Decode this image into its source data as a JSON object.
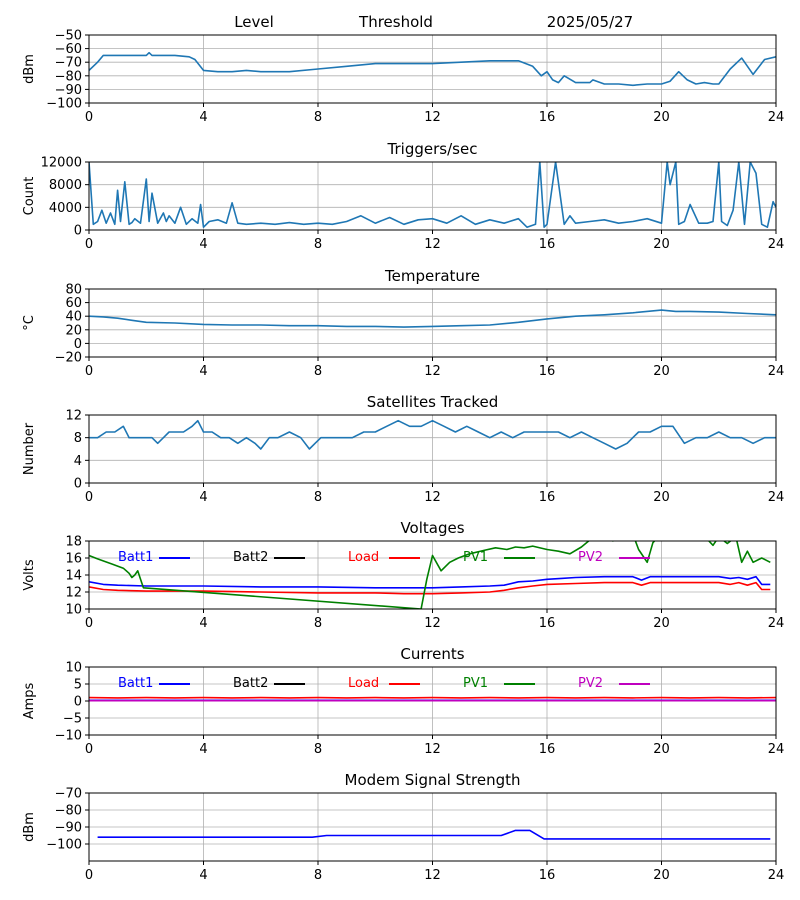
{
  "header": {
    "left": "Level",
    "middle": "Threshold",
    "date": "2025/05/27"
  },
  "colors": {
    "default": "#1f77b4",
    "batt1": "#0000ff",
    "batt2": "#000000",
    "load": "#ff0000",
    "pv1": "#008000",
    "pv2": "#bf00bf",
    "grid": "#b0b0b0"
  },
  "chart_data": [
    {
      "id": "level",
      "type": "line",
      "title": "",
      "ylabel": "dBm",
      "xlim": [
        0,
        24
      ],
      "ylim": [
        -100,
        -50
      ],
      "xticks": [
        0,
        4,
        8,
        12,
        16,
        20,
        24
      ],
      "yticks": [
        -100,
        -90,
        -80,
        -70,
        -60,
        -50
      ],
      "ytick_labels": [
        "−100",
        "−90",
        "−80",
        "−70",
        "−60",
        "−50"
      ],
      "grid": true,
      "series": [
        {
          "color": "#1f77b4",
          "x": [
            0,
            0.3,
            0.5,
            1,
            2,
            2.1,
            2.2,
            3,
            3.5,
            3.7,
            4,
            4.5,
            5,
            5.5,
            6,
            7,
            8,
            9,
            10,
            11,
            12,
            13,
            14,
            15,
            15.5,
            15.8,
            16,
            16.2,
            16.4,
            16.6,
            17,
            17.5,
            17.6,
            18,
            18.5,
            19,
            19.5,
            20,
            20.3,
            20.6,
            20.9,
            21.2,
            21.5,
            21.8,
            22,
            22.4,
            22.8,
            23.2,
            23.6,
            24
          ],
          "y": [
            -76,
            -70,
            -65,
            -65,
            -65,
            -63,
            -65,
            -65,
            -66,
            -68,
            -76,
            -77,
            -77,
            -76,
            -77,
            -77,
            -75,
            -73,
            -71,
            -71,
            -71,
            -70,
            -69,
            -69,
            -73,
            -80,
            -77,
            -83,
            -85,
            -80,
            -85,
            -85,
            -83,
            -86,
            -86,
            -87,
            -86,
            -86,
            -84,
            -77,
            -83,
            -86,
            -85,
            -86,
            -86,
            -75,
            -67,
            -79,
            -68,
            -66
          ]
        }
      ]
    },
    {
      "id": "triggers",
      "type": "line",
      "title": "Triggers/sec",
      "ylabel": "Count",
      "xlim": [
        0,
        24
      ],
      "ylim": [
        0,
        12000
      ],
      "xticks": [
        0,
        4,
        8,
        12,
        16,
        20,
        24
      ],
      "yticks": [
        0,
        4000,
        8000,
        12000
      ],
      "ytick_labels": [
        "0",
        "4000",
        "8000",
        "12000"
      ],
      "grid": true,
      "series": [
        {
          "color": "#1f77b4",
          "x": [
            0,
            0.15,
            0.3,
            0.45,
            0.6,
            0.75,
            0.9,
            1.0,
            1.1,
            1.25,
            1.4,
            1.5,
            1.6,
            1.8,
            2.0,
            2.1,
            2.2,
            2.4,
            2.6,
            2.7,
            2.8,
            3.0,
            3.2,
            3.4,
            3.6,
            3.8,
            3.9,
            4.0,
            4.2,
            4.5,
            4.8,
            5.0,
            5.2,
            5.5,
            6.0,
            6.5,
            7.0,
            7.5,
            8.0,
            8.5,
            9.0,
            9.5,
            10.0,
            10.5,
            11.0,
            11.5,
            12.0,
            12.5,
            13.0,
            13.5,
            14.0,
            14.5,
            15.0,
            15.3,
            15.6,
            15.75,
            15.9,
            16.0,
            16.3,
            16.6,
            16.8,
            17.0,
            17.5,
            18.0,
            18.5,
            19.0,
            19.5,
            20.0,
            20.2,
            20.3,
            20.5,
            20.6,
            20.8,
            21.0,
            21.3,
            21.6,
            21.8,
            22.0,
            22.1,
            22.3,
            22.5,
            22.7,
            22.9,
            23.1,
            23.3,
            23.5,
            23.7,
            23.9,
            24
          ],
          "y": [
            12000,
            1000,
            1500,
            3500,
            1200,
            3000,
            1000,
            7000,
            1500,
            8500,
            1000,
            1300,
            2000,
            1200,
            9000,
            1500,
            6500,
            1200,
            3000,
            1500,
            2500,
            1200,
            4000,
            1000,
            2000,
            1200,
            4500,
            500,
            1500,
            1800,
            1200,
            4800,
            1200,
            1000,
            1200,
            1000,
            1300,
            1000,
            1200,
            1000,
            1500,
            2500,
            1200,
            2200,
            1000,
            1800,
            2000,
            1200,
            2500,
            1000,
            1800,
            1200,
            2000,
            500,
            1000,
            12000,
            500,
            1000,
            12000,
            1000,
            2500,
            1200,
            1500,
            1800,
            1200,
            1500,
            2000,
            1200,
            12000,
            8000,
            12000,
            1000,
            1500,
            4500,
            1200,
            1200,
            1500,
            12000,
            1500,
            800,
            3500,
            12000,
            1000,
            12000,
            10000,
            1000,
            500,
            5000,
            4000
          ]
        }
      ]
    },
    {
      "id": "temperature",
      "type": "line",
      "title": "Temperature",
      "ylabel": "°C",
      "xlim": [
        0,
        24
      ],
      "ylim": [
        -20,
        80
      ],
      "xticks": [
        0,
        4,
        8,
        12,
        16,
        20,
        24
      ],
      "yticks": [
        -20,
        0,
        20,
        40,
        60,
        80
      ],
      "ytick_labels": [
        "−20",
        "0",
        "20",
        "40",
        "60",
        "80"
      ],
      "grid": true,
      "series": [
        {
          "color": "#1f77b4",
          "x": [
            0,
            0.5,
            1,
            1.5,
            2,
            3,
            4,
            5,
            6,
            7,
            8,
            9,
            10,
            11,
            12,
            13,
            14,
            15,
            16,
            17,
            18,
            19,
            20,
            20.5,
            21,
            22,
            23,
            24
          ],
          "y": [
            40,
            39,
            37,
            34,
            31,
            30,
            28,
            27,
            27,
            26,
            26,
            25,
            25,
            24,
            25,
            26,
            27,
            31,
            36,
            40,
            42,
            45,
            49,
            47,
            47,
            46,
            44,
            42
          ]
        }
      ]
    },
    {
      "id": "satellites",
      "type": "line",
      "title": "Satellites Tracked",
      "ylabel": "Number",
      "xlim": [
        0,
        24
      ],
      "ylim": [
        0,
        12
      ],
      "xticks": [
        0,
        4,
        8,
        12,
        16,
        20,
        24
      ],
      "yticks": [
        0,
        4,
        8,
        12
      ],
      "ytick_labels": [
        "0",
        "4",
        "8",
        "12"
      ],
      "grid": true,
      "series": [
        {
          "color": "#1f77b4",
          "x": [
            0,
            0.3,
            0.6,
            0.9,
            1.2,
            1.4,
            1.6,
            1.8,
            2.0,
            2.2,
            2.4,
            2.6,
            2.8,
            3.0,
            3.3,
            3.6,
            3.8,
            4.0,
            4.3,
            4.6,
            4.9,
            5.2,
            5.5,
            5.8,
            6.0,
            6.3,
            6.6,
            7.0,
            7.4,
            7.7,
            7.9,
            8.1,
            8.4,
            8.8,
            9.2,
            9.6,
            10.0,
            10.4,
            10.8,
            11.2,
            11.6,
            12.0,
            12.4,
            12.8,
            13.2,
            13.6,
            14.0,
            14.4,
            14.8,
            15.2,
            15.6,
            16.0,
            16.4,
            16.8,
            17.2,
            17.6,
            18.0,
            18.4,
            18.8,
            19.2,
            19.6,
            20.0,
            20.4,
            20.8,
            21.2,
            21.6,
            22.0,
            22.4,
            22.8,
            23.2,
            23.6,
            24
          ],
          "y": [
            8,
            8,
            9,
            9,
            10,
            8,
            8,
            8,
            8,
            8,
            7,
            8,
            9,
            9,
            9,
            10,
            11,
            9,
            9,
            8,
            8,
            7,
            8,
            7,
            6,
            8,
            8,
            9,
            8,
            6,
            7,
            8,
            8,
            8,
            8,
            9,
            9,
            10,
            11,
            10,
            10,
            11,
            10,
            9,
            10,
            9,
            8,
            9,
            8,
            9,
            9,
            9,
            9,
            8,
            9,
            8,
            7,
            6,
            7,
            9,
            9,
            10,
            10,
            7,
            8,
            8,
            9,
            8,
            8,
            7,
            8,
            8
          ]
        }
      ]
    },
    {
      "id": "voltages",
      "type": "line",
      "title": "Voltages",
      "ylabel": "Volts",
      "xlim": [
        0,
        24
      ],
      "ylim": [
        10,
        18
      ],
      "xticks": [
        0,
        4,
        8,
        12,
        16,
        20,
        24
      ],
      "yticks": [
        10,
        12,
        14,
        16,
        18
      ],
      "ytick_labels": [
        "10",
        "12",
        "14",
        "16",
        "18"
      ],
      "grid": true,
      "legend": "top-left-inside",
      "series": [
        {
          "name": "Batt1",
          "color": "#0000ff",
          "x": [
            0,
            0.5,
            1,
            2,
            3,
            4,
            6,
            8,
            10,
            12,
            13,
            14,
            14.5,
            15,
            15.5,
            16,
            16.5,
            17,
            18,
            19,
            19.3,
            19.6,
            20,
            21,
            22,
            22.4,
            22.7,
            23,
            23.3,
            23.5,
            23.8
          ],
          "y": [
            13.2,
            12.9,
            12.8,
            12.7,
            12.7,
            12.7,
            12.6,
            12.6,
            12.5,
            12.5,
            12.6,
            12.7,
            12.8,
            13.2,
            13.3,
            13.5,
            13.6,
            13.7,
            13.8,
            13.8,
            13.4,
            13.8,
            13.8,
            13.8,
            13.8,
            13.6,
            13.7,
            13.5,
            13.8,
            12.9,
            12.9
          ]
        },
        {
          "name": "Batt2",
          "color": "#000000",
          "x": [],
          "y": []
        },
        {
          "name": "Load",
          "color": "#ff0000",
          "x": [
            0,
            0.5,
            1,
            2,
            3,
            4,
            6,
            8,
            10,
            11,
            12,
            13,
            14,
            14.5,
            15,
            15.5,
            16,
            17,
            18,
            19,
            19.3,
            19.6,
            20,
            21,
            22,
            22.4,
            22.7,
            23,
            23.3,
            23.5,
            23.8
          ],
          "y": [
            12.6,
            12.3,
            12.2,
            12.1,
            12.1,
            12.1,
            12.0,
            11.9,
            11.9,
            11.8,
            11.8,
            11.9,
            12.0,
            12.2,
            12.5,
            12.7,
            12.9,
            13.0,
            13.1,
            13.1,
            12.8,
            13.1,
            13.1,
            13.1,
            13.1,
            12.9,
            13.1,
            12.8,
            13.1,
            12.3,
            12.3
          ]
        },
        {
          "name": "PV1",
          "color": "#008000",
          "x": [
            0,
            0.3,
            0.8,
            1.2,
            1.4,
            1.5,
            1.6,
            1.7,
            1.9,
            11.6,
            11.8,
            12.0,
            12.3,
            12.6,
            12.9,
            13.3,
            13.8,
            14.2,
            14.6,
            14.9,
            15.2,
            15.5,
            16.0,
            16.4,
            16.8,
            17.2,
            17.6,
            18.0,
            18.3,
            18.6,
            19.0,
            19.2,
            19.5,
            19.7,
            19.9,
            20.2,
            21.0,
            21.6,
            21.8,
            22.0,
            22.3,
            22.6,
            22.8,
            23.0,
            23.2,
            23.5,
            23.8
          ],
          "y": [
            16.3,
            15.9,
            15.3,
            14.8,
            14.2,
            13.7,
            14.0,
            14.5,
            12.5,
            10.0,
            13.5,
            16.3,
            14.5,
            15.5,
            16.0,
            16.5,
            16.9,
            17.2,
            17.0,
            17.3,
            17.2,
            17.4,
            17.0,
            16.8,
            16.5,
            17.3,
            18.4,
            18.6,
            18.0,
            18.5,
            18.8,
            17.0,
            15.5,
            17.8,
            18.5,
            19.0,
            19.0,
            18.2,
            17.5,
            18.5,
            17.7,
            18.5,
            15.5,
            16.8,
            15.5,
            16.0,
            15.5
          ]
        },
        {
          "name": "PV2",
          "color": "#bf00bf",
          "x": [],
          "y": []
        }
      ]
    },
    {
      "id": "currents",
      "type": "line",
      "title": "Currents",
      "ylabel": "Amps",
      "xlim": [
        0,
        24
      ],
      "ylim": [
        -10,
        10
      ],
      "xticks": [
        0,
        4,
        8,
        12,
        16,
        20,
        24
      ],
      "yticks": [
        -10,
        -5,
        0,
        5,
        10
      ],
      "ytick_labels": [
        "−10",
        "−5",
        "0",
        "5",
        "10"
      ],
      "grid": true,
      "legend": "top-left-inside",
      "series": [
        {
          "name": "Batt1",
          "color": "#0000ff",
          "x": [
            0,
            4,
            8,
            12,
            16,
            20,
            24
          ],
          "y": [
            0.2,
            0.2,
            0.2,
            0.2,
            0.2,
            0.2,
            0.2
          ]
        },
        {
          "name": "Batt2",
          "color": "#000000",
          "x": [],
          "y": []
        },
        {
          "name": "Load",
          "color": "#ff0000",
          "x": [
            0,
            1,
            2,
            3,
            4,
            5,
            6,
            7,
            8,
            9,
            10,
            11,
            12,
            13,
            14,
            15,
            16,
            17,
            18,
            19,
            20,
            21,
            22,
            23,
            24
          ],
          "y": [
            1.0,
            0.9,
            1.0,
            0.9,
            1.0,
            0.9,
            1.0,
            0.9,
            1.0,
            0.9,
            1.0,
            0.9,
            1.0,
            0.9,
            1.0,
            0.9,
            1.0,
            0.9,
            1.0,
            0.9,
            1.0,
            0.9,
            1.0,
            0.9,
            1.0
          ]
        },
        {
          "name": "PV1",
          "color": "#008000",
          "x": [],
          "y": []
        },
        {
          "name": "PV2",
          "color": "#bf00bf",
          "x": [
            0,
            4,
            8,
            12,
            16,
            20,
            24
          ],
          "y": [
            0.1,
            0.1,
            0.1,
            0.1,
            0.1,
            0.1,
            0.1
          ]
        }
      ]
    },
    {
      "id": "modem",
      "type": "line",
      "title": "Modem Signal Strength",
      "ylabel": "dBm",
      "xlim": [
        0,
        24
      ],
      "ylim": [
        -110,
        -70
      ],
      "xticks": [
        0,
        4,
        8,
        12,
        16,
        20,
        24
      ],
      "yticks": [
        -100,
        -90,
        -80,
        -70
      ],
      "ytick_labels": [
        "−100",
        "−90",
        "−80",
        "−70"
      ],
      "grid": true,
      "series": [
        {
          "color": "#0000ff",
          "x": [
            0.3,
            7.8,
            8.3,
            14.4,
            14.9,
            15.4,
            15.9,
            23.8
          ],
          "y": [
            -96,
            -96,
            -95,
            -95,
            -92,
            -92,
            -97,
            -97
          ]
        }
      ]
    }
  ]
}
